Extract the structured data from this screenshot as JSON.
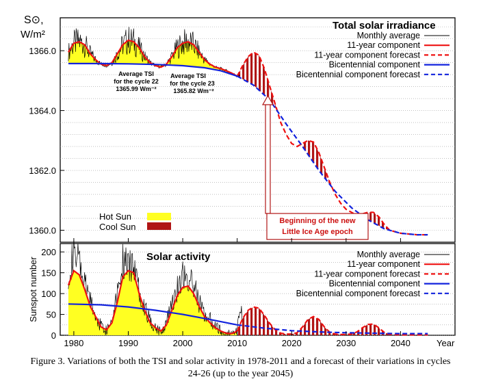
{
  "caption": {
    "line1": "Figure 3. Variations of both the TSI and solar activity in 1978-2011 and a forecast of their variations in cycles",
    "line2": "24-26 (up to the year 2045)"
  },
  "chart_data": [
    {
      "type": "line",
      "title": "Total solar irradiance",
      "ylabel_line1": "S⊙,",
      "ylabel_line2": "W/m²",
      "xlim": [
        1977.5,
        2050
      ],
      "ylim": [
        1359.6,
        1367.1
      ],
      "yticks": [
        1360.0,
        1362.0,
        1364.0,
        1366.0
      ],
      "ytick_labels": [
        "1360.0",
        "1362.0",
        "1364.0",
        "1366.0"
      ],
      "grid": true,
      "legend_position": "top-right",
      "legend": [
        {
          "label": "Monthly average",
          "color": "#000000",
          "style": "solid-thin"
        },
        {
          "label": "11-year component",
          "color": "#ee1111",
          "style": "solid"
        },
        {
          "label": "11-year component forecast",
          "color": "#ee1111",
          "style": "dashed"
        },
        {
          "label": "Bicentennial component",
          "color": "#1122dd",
          "style": "solid"
        },
        {
          "label": "Bicentennial component forecast",
          "color": "#1122dd",
          "style": "dashed"
        }
      ],
      "fill_legend": [
        {
          "label": "Hot Sun",
          "color": "#ffff22"
        },
        {
          "label": "Cool Sun",
          "color": "#b01515"
        }
      ],
      "annotations": {
        "cycle22_l1": "Average TSI",
        "cycle22_l2": "for the cycle 22",
        "cycle22_l3": "1365.99 Wm⁻²",
        "cycle23_l1": "Average TSI",
        "cycle23_l2": "for the cycle 23",
        "cycle23_l3": "1365.82 Wm⁻²",
        "epoch_l1": "Beginning of the new",
        "epoch_l2": "Little Ice Age epoch"
      },
      "series": [
        {
          "name": "Bicentennial component",
          "x": [
            1979,
            1985,
            1990,
            1995,
            2000,
            2004,
            2007,
            2010
          ],
          "y": [
            1365.57,
            1365.57,
            1365.56,
            1365.54,
            1365.5,
            1365.43,
            1365.33,
            1365.15
          ]
        },
        {
          "name": "Bicentennial component forecast",
          "x": [
            2010,
            2013,
            2016,
            2019,
            2022,
            2025,
            2028,
            2031,
            2034,
            2037,
            2040,
            2043,
            2045
          ],
          "y": [
            1365.15,
            1364.85,
            1364.35,
            1363.55,
            1362.8,
            1362.0,
            1361.3,
            1360.75,
            1360.35,
            1360.05,
            1359.9,
            1359.85,
            1359.85
          ]
        },
        {
          "name": "11-year component",
          "x": [
            1979,
            1980,
            1981,
            1982,
            1983,
            1984,
            1985,
            1986,
            1987,
            1988,
            1989,
            1990,
            1991,
            1992,
            1993,
            1994,
            1995,
            1996,
            1997,
            1998,
            1999,
            2000,
            2001,
            2002,
            2003,
            2004,
            2005,
            2006,
            2007,
            2008,
            2009,
            2010
          ],
          "y": [
            1365.95,
            1366.25,
            1366.3,
            1366.2,
            1365.9,
            1365.7,
            1365.55,
            1365.5,
            1365.6,
            1365.9,
            1366.2,
            1366.35,
            1366.3,
            1366.1,
            1365.8,
            1365.6,
            1365.5,
            1365.45,
            1365.55,
            1365.8,
            1366.1,
            1366.25,
            1366.3,
            1366.2,
            1365.95,
            1365.7,
            1365.55,
            1365.45,
            1365.4,
            1365.33,
            1365.25,
            1365.15
          ]
        },
        {
          "name": "11-year component forecast",
          "x": [
            2010,
            2011,
            2012,
            2013,
            2014,
            2015,
            2016,
            2017,
            2018,
            2019,
            2020,
            2021,
            2022,
            2023,
            2024,
            2025,
            2026,
            2027,
            2028,
            2029,
            2030,
            2031,
            2032,
            2033,
            2034,
            2035,
            2036,
            2037,
            2038,
            2040,
            2043,
            2045
          ],
          "y": [
            1365.15,
            1365.5,
            1365.8,
            1365.95,
            1365.85,
            1365.4,
            1364.8,
            1364.2,
            1363.6,
            1363.2,
            1362.9,
            1362.8,
            1362.9,
            1363.0,
            1362.95,
            1362.6,
            1362.1,
            1361.6,
            1361.2,
            1360.9,
            1360.7,
            1360.6,
            1360.5,
            1360.55,
            1360.6,
            1360.6,
            1360.45,
            1360.2,
            1360.0,
            1359.9,
            1359.85,
            1359.85
          ]
        }
      ]
    },
    {
      "type": "line",
      "title": "Solar activity",
      "ylabel": "Sunspot number",
      "xlabel": "Year",
      "xlim": [
        1977.5,
        2050
      ],
      "ylim": [
        0,
        220
      ],
      "xticks": [
        1980,
        1990,
        2000,
        2010,
        2020,
        2030,
        2040
      ],
      "xtick_labels": [
        "1980",
        "1990",
        "2000",
        "2010",
        "2020",
        "2030",
        "2040"
      ],
      "yticks": [
        0,
        50,
        100,
        150,
        200
      ],
      "ytick_labels": [
        "0",
        "50",
        "100",
        "150",
        "200"
      ],
      "grid": true,
      "legend_position": "top-right",
      "legend": [
        {
          "label": "Monthly average",
          "color": "#000000",
          "style": "solid-thin"
        },
        {
          "label": "11-year component",
          "color": "#ee1111",
          "style": "solid"
        },
        {
          "label": "11-year component forecast",
          "color": "#ee1111",
          "style": "dashed"
        },
        {
          "label": "Bicentennial component",
          "color": "#1122dd",
          "style": "solid"
        },
        {
          "label": "Bicentennial component forecast",
          "color": "#1122dd",
          "style": "dashed"
        }
      ],
      "series": [
        {
          "name": "Bicentennial component",
          "x": [
            1979,
            1985,
            1990,
            1995,
            2000,
            2005,
            2010
          ],
          "y": [
            75,
            73,
            68,
            60,
            50,
            38,
            25
          ]
        },
        {
          "name": "Bicentennial component forecast",
          "x": [
            2010,
            2015,
            2020,
            2025,
            2030,
            2035,
            2040,
            2045
          ],
          "y": [
            25,
            17,
            11,
            8,
            6,
            5,
            4,
            4
          ]
        },
        {
          "name": "11-year component",
          "x": [
            1979,
            1980,
            1981,
            1982,
            1983,
            1984,
            1985,
            1986,
            1987,
            1988,
            1989,
            1990,
            1991,
            1992,
            1993,
            1994,
            1995,
            1996,
            1997,
            1998,
            1999,
            2000,
            2001,
            2002,
            2003,
            2004,
            2005,
            2006,
            2007,
            2008,
            2009,
            2010
          ],
          "y": [
            120,
            155,
            145,
            110,
            70,
            45,
            20,
            13,
            30,
            80,
            140,
            155,
            150,
            100,
            60,
            30,
            18,
            10,
            25,
            60,
            95,
            115,
            118,
            100,
            70,
            45,
            30,
            18,
            10,
            5,
            4,
            10
          ]
        },
        {
          "name": "11-year component forecast",
          "x": [
            2010,
            2011,
            2012,
            2013,
            2014,
            2015,
            2016,
            2017,
            2018,
            2019,
            2020,
            2021,
            2022,
            2023,
            2024,
            2025,
            2026,
            2027,
            2028,
            2029,
            2030,
            2031,
            2032,
            2033,
            2034,
            2035,
            2036,
            2037,
            2038,
            2040,
            2045
          ],
          "y": [
            10,
            40,
            60,
            68,
            65,
            48,
            28,
            13,
            5,
            3,
            3,
            6,
            20,
            38,
            45,
            38,
            20,
            7,
            3,
            2,
            2,
            3,
            8,
            18,
            26,
            27,
            18,
            7,
            2,
            1,
            1
          ]
        },
        {
          "name": "Monthly average",
          "x": [
            1979,
            1980,
            1981,
            1982,
            1983,
            1984,
            1985,
            1986,
            1987,
            1988,
            1989,
            1990,
            1991,
            1992,
            1993,
            1994,
            1995,
            1996,
            1997,
            1998,
            1999,
            2000,
            2001,
            2002,
            2003,
            2004,
            2005,
            2006,
            2007,
            2008,
            2009,
            2010,
            2011
          ],
          "y": [
            150,
            190,
            175,
            120,
            90,
            40,
            25,
            12,
            40,
            110,
            180,
            160,
            175,
            110,
            70,
            35,
            20,
            8,
            30,
            80,
            110,
            150,
            130,
            120,
            80,
            50,
            40,
            20,
            10,
            3,
            2,
            20,
            60
          ]
        }
      ]
    }
  ]
}
